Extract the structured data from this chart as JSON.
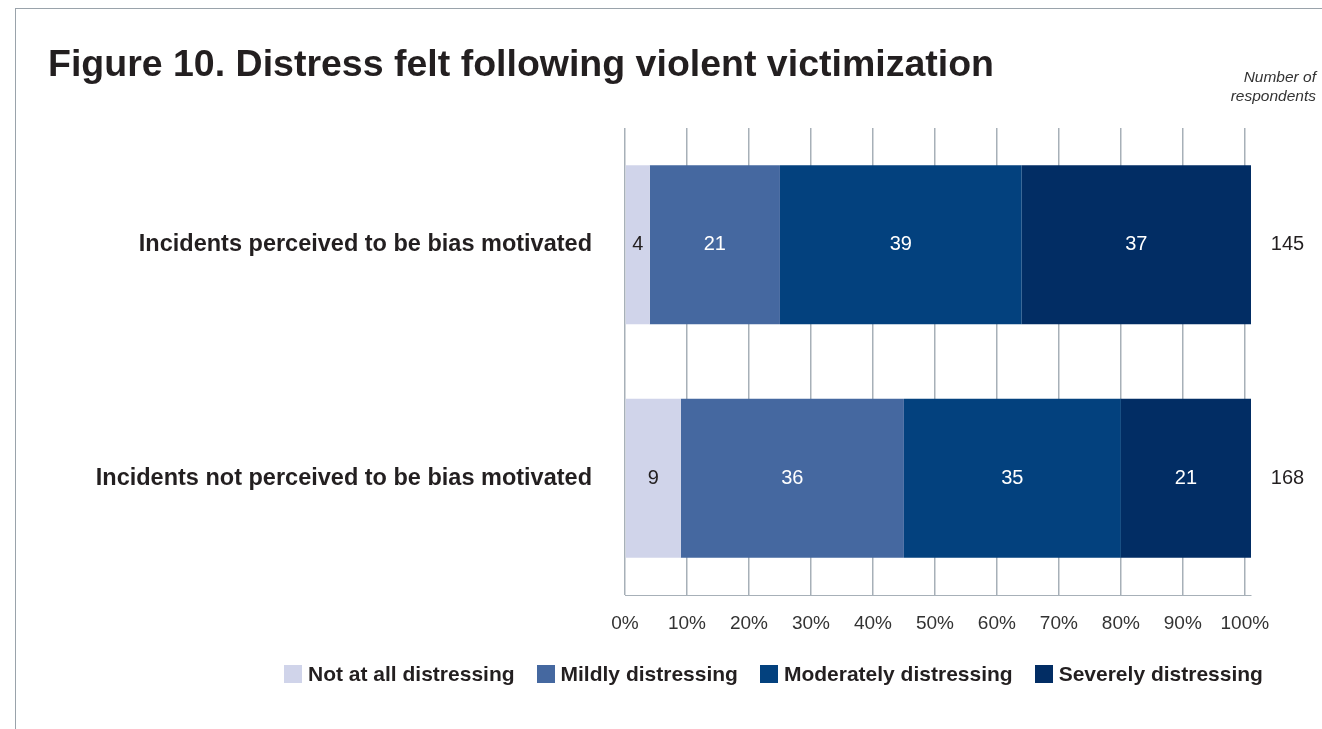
{
  "chart_data": {
    "type": "bar",
    "orientation": "horizontal",
    "stacked": true,
    "title": "Figure 10. Distress felt following violent victimization",
    "categories": [
      "Incidents perceived to be bias motivated",
      "Incidents not perceived to be bias motivated"
    ],
    "series": [
      {
        "name": "Not at all distressing",
        "color": "#d0d4ea",
        "values": [
          4,
          9
        ]
      },
      {
        "name": "Mildly distressing",
        "color": "#4568a0",
        "values": [
          21,
          36
        ]
      },
      {
        "name": "Moderately distressing",
        "color": "#03417e",
        "values": [
          39,
          35
        ]
      },
      {
        "name": "Severely distressing",
        "color": "#022d64",
        "values": [
          37,
          21
        ]
      }
    ],
    "xlim": [
      0,
      101
    ],
    "xticks": [
      {
        "value": 0,
        "label": "0%"
      },
      {
        "value": 10,
        "label": "10%"
      },
      {
        "value": 20,
        "label": "20%"
      },
      {
        "value": 30,
        "label": "30%"
      },
      {
        "value": 40,
        "label": "40%"
      },
      {
        "value": 50,
        "label": "50%"
      },
      {
        "value": 60,
        "label": "60%"
      },
      {
        "value": 70,
        "label": "70%"
      },
      {
        "value": 80,
        "label": "80%"
      },
      {
        "value": 90,
        "label": "90%"
      },
      {
        "value": 100,
        "label": "100%"
      }
    ],
    "grid": "x",
    "legend": "bottom",
    "data_labels": true,
    "annotations": [
      "Number of respondents",
      "145",
      "168"
    ]
  }
}
